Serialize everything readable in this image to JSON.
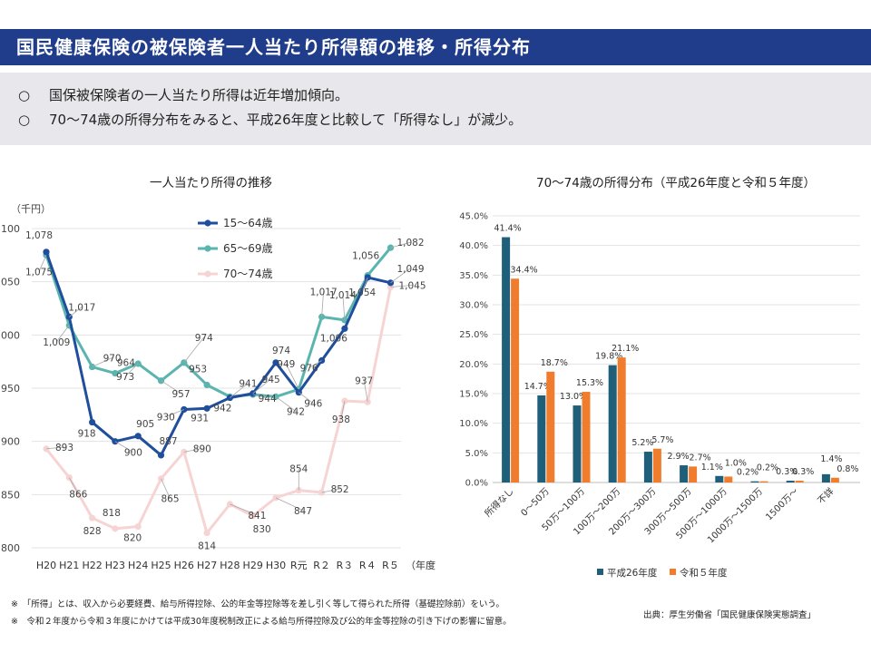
{
  "header": {
    "title": "国民健康保険の被保険者一人当たり所得額の推移・所得分布"
  },
  "summary": {
    "bullet_mark": "○",
    "items": [
      "国保被保険者の一人当たり所得は近年増加傾向。",
      "70～74歳の所得分布をみると、平成26年度と比較して「所得なし」が減少。"
    ]
  },
  "chart_data": [
    {
      "type": "line",
      "title": "一人当たり所得の推移",
      "ylabel": "（千円）",
      "xlabel": "（年度）",
      "ylim": [
        800,
        1100
      ],
      "yticks": [
        "800",
        "850",
        "900",
        "950",
        "1,000",
        "1,050",
        "1,100"
      ],
      "categories": [
        "H20",
        "H21",
        "H22",
        "H23",
        "H24",
        "H25",
        "H26",
        "H27",
        "H28",
        "H29",
        "H30",
        "R元",
        "R２",
        "R３",
        "R４",
        "R５"
      ],
      "series": [
        {
          "name": "15～64歳",
          "color": "#1f4e9c",
          "values": [
            1078,
            1017,
            918,
            900,
            905,
            887,
            930,
            931,
            941,
            945,
            974,
            946,
            976,
            1006,
            1054,
            1049
          ],
          "labels": [
            "1,078",
            "1,017",
            "918",
            "900",
            "905",
            "887",
            "930",
            "931",
            "941",
            "945",
            "974",
            "946",
            "976",
            "1,006",
            "1,054",
            "1,049"
          ]
        },
        {
          "name": "65～69歳",
          "color": "#5bb5ae",
          "values": [
            1075,
            1009,
            970,
            964,
            973,
            957,
            974,
            953,
            942,
            944,
            942,
            949,
            1017,
            1014,
            1056,
            1082
          ],
          "labels": [
            "1,075",
            "1,009",
            "970",
            "964",
            "973",
            "957",
            "974",
            "953",
            "942",
            "944",
            "942",
            "949",
            "1,017",
            "1,014",
            "1,056",
            "1,082"
          ]
        },
        {
          "name": "70～74歳",
          "color": "#f7d4d4",
          "values": [
            893,
            866,
            828,
            818,
            820,
            865,
            890,
            814,
            841,
            830,
            847,
            854,
            852,
            938,
            937,
            1045
          ],
          "labels": [
            "893",
            "866",
            "828",
            "818",
            "820",
            "865",
            "890",
            "814",
            "841",
            "830",
            "847",
            "854",
            "852",
            "938",
            "937",
            "1,045"
          ]
        }
      ]
    },
    {
      "type": "bar",
      "title": "70～74歳の所得分布（平成26年度と令和５年度）",
      "ylim": [
        0,
        45
      ],
      "yticks": [
        "0.0%",
        "5.0%",
        "10.0%",
        "15.0%",
        "20.0%",
        "25.0%",
        "30.0%",
        "35.0%",
        "40.0%",
        "45.0%"
      ],
      "categories": [
        "所得なし",
        "0～50万",
        "50万～100万",
        "100万～200万",
        "200万～300万",
        "300万～500万",
        "500万～1000万",
        "1000万～1500万",
        "1500万～",
        "不詳"
      ],
      "series": [
        {
          "name": "平成26年度",
          "color": "#1f5f7a",
          "values": [
            41.4,
            14.7,
            13.0,
            19.8,
            5.2,
            2.9,
            1.1,
            0.2,
            0.3,
            1.4
          ],
          "labels": [
            "41.4%",
            "14.7%",
            "13.0%",
            "19.8%",
            "5.2%",
            "2.9%",
            "1.1%",
            "0.2%",
            "0.3%",
            "1.4%"
          ]
        },
        {
          "name": "令和５年度",
          "color": "#f07d2e",
          "values": [
            34.4,
            18.7,
            15.3,
            21.1,
            5.7,
            2.7,
            1.0,
            0.2,
            0.3,
            0.8
          ],
          "labels": [
            "34.4%",
            "18.7%",
            "15.3%",
            "21.1%",
            "5.7%",
            "2.7%",
            "1.0%",
            "0.2%",
            "0.3%",
            "0.8%"
          ]
        }
      ]
    }
  ],
  "notes": [
    "※　「所得」とは、収入から必要経費、給与所得控除、公的年金等控除等を差し引く等して得られた所得（基礎控除前）をいう。",
    "※　令和２年度から令和３年度にかけては平成30年度税制改正による給与所得控除及び公的年金等控除の引き下げの影響に留意。"
  ],
  "source": "出典：厚生労働省「国民健康保険実態調査」"
}
